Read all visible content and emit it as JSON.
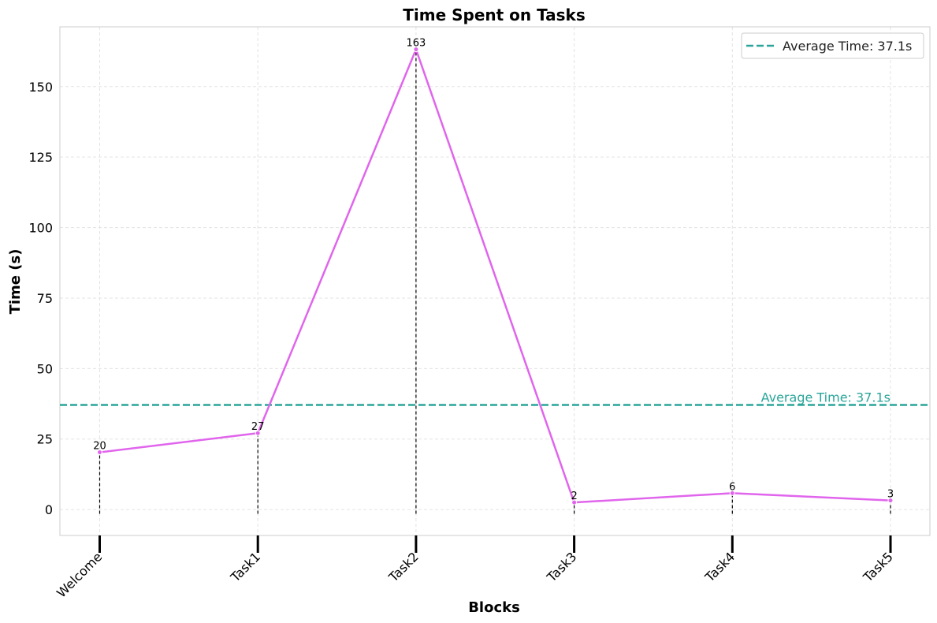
{
  "chart_data": {
    "type": "line",
    "title": "Time Spent on Tasks",
    "xlabel": "Blocks",
    "ylabel": "Time (s)",
    "categories": [
      "Welcome",
      "Task1",
      "Task2",
      "Task3",
      "Task4",
      "Task5"
    ],
    "series": [
      {
        "values": [
          20.3,
          27.1,
          163.2,
          2.5,
          5.8,
          3.2
        ],
        "data_labels": [
          "20",
          "27",
          "163",
          "2",
          "6",
          "3"
        ],
        "color": "#e065ec"
      }
    ],
    "average": {
      "value": 37.1,
      "label": "Average Time: 37.1s",
      "color": "#2aa59a"
    },
    "legend": {
      "entries": [
        "Average Time: 37.1s"
      ],
      "placement": "top-right"
    },
    "yticks": [
      0,
      25,
      50,
      75,
      100,
      125,
      150
    ],
    "ylim": [
      -9.2,
      171.2
    ],
    "grid": true
  }
}
